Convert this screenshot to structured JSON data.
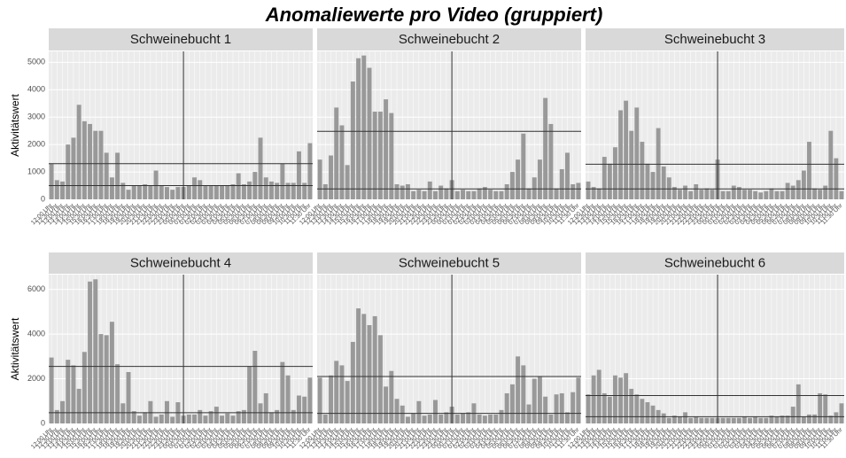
{
  "title": "Anomaliewerte pro Video (gruppiert)",
  "categories": [
    "12:00 Uhr",
    "12:30 Uhr",
    "13:00 Uhr",
    "13:30 Uhr",
    "14:00 Uhr",
    "14:30 Uhr",
    "15:00 Uhr",
    "15:30 Uhr",
    "16:00 Uhr",
    "16:30 Uhr",
    "17:00 Uhr",
    "17:30 Uhr",
    "18:00 Uhr",
    "18:30 Uhr",
    "19:00 Uhr",
    "19:30 Uhr",
    "20:00 Uhr",
    "20:30 Uhr",
    "21:00 Uhr",
    "21:30 Uhr",
    "22:00 Uhr",
    "22:30 Uhr",
    "23:00 Uhr",
    "23:30 Uhr",
    "00:00 Uhr",
    "00:30 Uhr",
    "01:00 Uhr",
    "01:30 Uhr",
    "02:00 Uhr",
    "02:30 Uhr",
    "03:00 Uhr",
    "03:30 Uhr",
    "04:00 Uhr",
    "04:30 Uhr",
    "05:00 Uhr",
    "05:30 Uhr",
    "06:00 Uhr",
    "06:30 Uhr",
    "07:00 Uhr",
    "07:30 Uhr",
    "08:00 Uhr",
    "08:30 Uhr",
    "09:00 Uhr",
    "09:30 Uhr",
    "10:00 Uhr",
    "10:30 Uhr",
    "11:00 Uhr",
    "11:30 Uhr"
  ],
  "chart_data": [
    {
      "type": "bar",
      "title": "Schweinebucht 1",
      "ylabel": "Aktivitätswert",
      "color": "#999999",
      "ylim": [
        0,
        5400
      ],
      "yticks": [
        0,
        1000,
        2000,
        3000,
        4000,
        5000
      ],
      "hlines": [
        1300,
        500
      ],
      "vline": "00:00 Uhr",
      "values": [
        1300,
        700,
        650,
        2000,
        2250,
        3450,
        2850,
        2750,
        2500,
        2500,
        1700,
        800,
        1700,
        600,
        350,
        500,
        500,
        550,
        500,
        1050,
        500,
        450,
        350,
        450,
        450,
        500,
        800,
        700,
        500,
        500,
        500,
        500,
        500,
        550,
        950,
        550,
        650,
        1000,
        2250,
        800,
        650,
        600,
        1300,
        600,
        600,
        1750,
        600,
        2050
      ]
    },
    {
      "type": "bar",
      "title": "Schweinebucht 2",
      "color": "#999999",
      "ylim": [
        0,
        5400
      ],
      "yticks": [
        0,
        1000,
        2000,
        3000,
        4000,
        5000
      ],
      "hlines": [
        2480,
        380
      ],
      "vline": "00:00 Uhr",
      "values": [
        1450,
        550,
        1600,
        3350,
        2700,
        1250,
        4300,
        5150,
        5250,
        4800,
        3200,
        3200,
        3650,
        3150,
        550,
        500,
        550,
        300,
        350,
        300,
        650,
        300,
        500,
        400,
        700,
        300,
        350,
        300,
        300,
        400,
        450,
        350,
        300,
        300,
        550,
        1000,
        1450,
        2400,
        400,
        800,
        1450,
        3700,
        2750,
        400,
        1100,
        1700,
        550,
        600
      ]
    },
    {
      "type": "bar",
      "title": "Schweinebucht 3",
      "color": "#999999",
      "ylim": [
        0,
        5400
      ],
      "yticks": [
        0,
        1000,
        2000,
        3000,
        4000,
        5000
      ],
      "hlines": [
        1280,
        380
      ],
      "vline": "00:00 Uhr",
      "values": [
        650,
        450,
        400,
        1550,
        1300,
        1900,
        3250,
        3600,
        2500,
        3350,
        2100,
        1300,
        1000,
        2600,
        1200,
        800,
        450,
        350,
        500,
        300,
        550,
        350,
        400,
        350,
        1450,
        300,
        300,
        500,
        450,
        350,
        350,
        300,
        250,
        300,
        400,
        300,
        300,
        600,
        500,
        700,
        1050,
        2100,
        400,
        350,
        500,
        2500,
        1500,
        300
      ]
    },
    {
      "type": "bar",
      "title": "Schweinebucht 4",
      "ylabel": "Aktivitätswert",
      "color": "#999999",
      "ylim": [
        0,
        6660
      ],
      "yticks": [
        0,
        2000,
        4000,
        6000
      ],
      "hlines": [
        2550,
        480
      ],
      "vline": "00:00 Uhr",
      "values": [
        2950,
        600,
        1000,
        2850,
        2600,
        1550,
        3200,
        6350,
        6450,
        4000,
        3950,
        4550,
        2650,
        900,
        2300,
        550,
        350,
        500,
        1000,
        300,
        400,
        1000,
        300,
        950,
        350,
        400,
        400,
        600,
        350,
        550,
        750,
        350,
        450,
        350,
        550,
        600,
        2550,
        3250,
        900,
        1350,
        500,
        600,
        2750,
        2150,
        600,
        1250,
        1200,
        2050
      ]
    },
    {
      "type": "bar",
      "title": "Schweinebucht 5",
      "color": "#999999",
      "ylim": [
        0,
        6660
      ],
      "yticks": [
        0,
        2000,
        4000,
        6000
      ],
      "hlines": [
        2100,
        450
      ],
      "vline": "00:00 Uhr",
      "values": [
        2050,
        400,
        2150,
        2800,
        2600,
        1900,
        3650,
        5150,
        4900,
        4400,
        4800,
        3950,
        1650,
        2350,
        1100,
        800,
        300,
        450,
        1000,
        350,
        400,
        1050,
        400,
        500,
        750,
        400,
        450,
        500,
        900,
        400,
        350,
        400,
        400,
        600,
        1350,
        1750,
        3000,
        2600,
        850,
        2000,
        2100,
        1200,
        400,
        1300,
        1350,
        500,
        1400,
        2050
      ]
    },
    {
      "type": "bar",
      "title": "Schweinebucht 6",
      "color": "#999999",
      "ylim": [
        0,
        6660
      ],
      "yticks": [
        0,
        2000,
        4000,
        6000
      ],
      "hlines": [
        1250,
        300
      ],
      "vline": "00:00 Uhr",
      "values": [
        1300,
        2150,
        2400,
        1350,
        1200,
        2150,
        2050,
        2250,
        1550,
        1300,
        1100,
        950,
        800,
        600,
        450,
        250,
        350,
        300,
        500,
        250,
        300,
        250,
        250,
        250,
        250,
        250,
        250,
        250,
        250,
        300,
        250,
        300,
        250,
        250,
        350,
        300,
        350,
        350,
        750,
        1750,
        300,
        400,
        400,
        1350,
        1300,
        350,
        500,
        900
      ]
    }
  ]
}
